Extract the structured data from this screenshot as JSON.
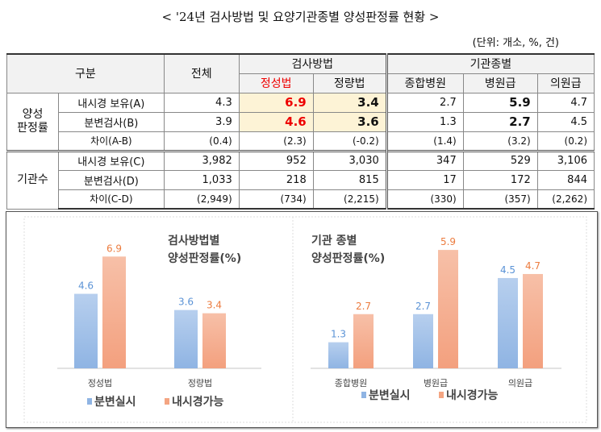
{
  "title": "< '24년 검사방법 및 요양기관종별 양성판정률 현황 >",
  "unit": "(단위: 개소, %, 건)",
  "table": {
    "h_category": "구분",
    "h_total": "전체",
    "h_method": "검사방법",
    "h_inst": "기관종별",
    "cols": [
      "정성법",
      "정량법",
      "종합병원",
      "병원급",
      "의원급"
    ],
    "group1": "양성\n판정률",
    "group2": "기관수",
    "rows": [
      {
        "label": "내시경 보유(A)",
        "values": [
          "4.3",
          "6.9",
          "3.4",
          "2.7",
          "5.9",
          "4.7"
        ]
      },
      {
        "label": "분변검사(B)",
        "values": [
          "3.9",
          "4.6",
          "3.6",
          "1.3",
          "2.7",
          "4.5"
        ]
      },
      {
        "label": "차이(A-B)",
        "values": [
          "(0.4)",
          "(2.3)",
          "(-0.2)",
          "(1.4)",
          "(3.2)",
          "(0.2)"
        ]
      },
      {
        "label": "내시경 보유(C)",
        "values": [
          "3,982",
          "952",
          "3,030",
          "347",
          "529",
          "3,106"
        ]
      },
      {
        "label": "분변검사(D)",
        "values": [
          "1,033",
          "218",
          "815",
          "17",
          "172",
          "844"
        ]
      },
      {
        "label": "차이(C-D)",
        "values": [
          "(2,949)",
          "(734)",
          "(2,215)",
          "(330)",
          "(357)",
          "(2,262)"
        ]
      }
    ]
  },
  "chart_data": [
    {
      "type": "bar",
      "title": "검사방법별\n양성판정률(%)",
      "categories": [
        "정성법",
        "정량법"
      ],
      "series": [
        {
          "name": "분변실시",
          "values": [
            4.6,
            3.6
          ],
          "color": "#8fb4e3"
        },
        {
          "name": "내시경가능",
          "values": [
            6.9,
            3.4
          ],
          "color": "#f4a582"
        }
      ],
      "legend": "bottom"
    },
    {
      "type": "bar",
      "title": "기관 종별\n양성판정률(%)",
      "categories": [
        "종합병원",
        "병원급",
        "의원급"
      ],
      "series": [
        {
          "name": "분변실시",
          "values": [
            1.3,
            2.7,
            4.5
          ],
          "color": "#8fb4e3"
        },
        {
          "name": "내시경가능",
          "values": [
            2.7,
            5.9,
            4.7
          ],
          "color": "#f4a582"
        }
      ],
      "legend": "bottom"
    }
  ]
}
